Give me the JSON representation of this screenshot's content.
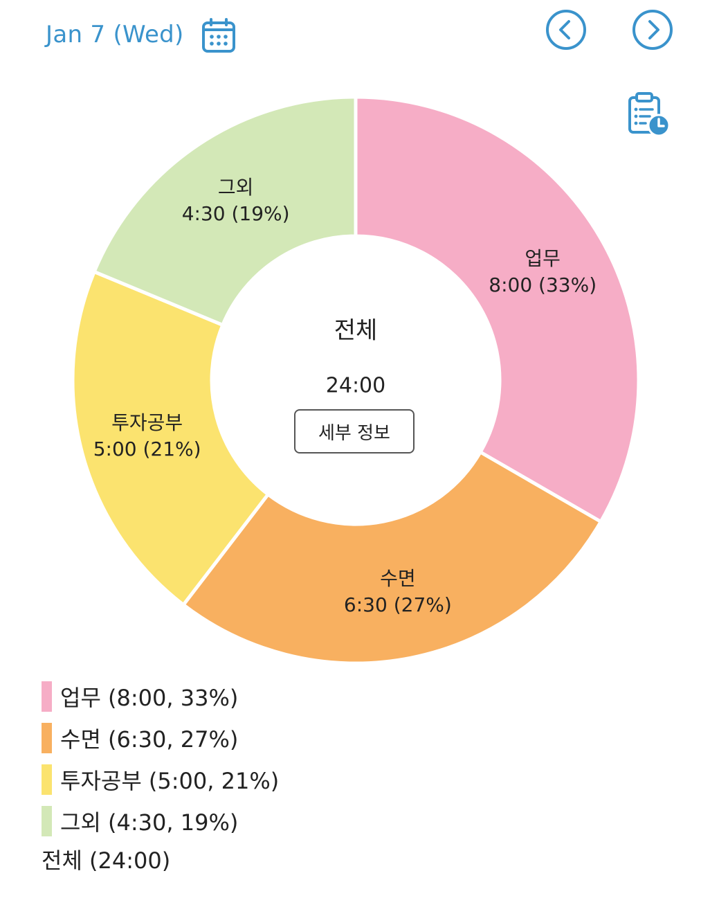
{
  "header": {
    "date_label": "Jan 7 (Wed)",
    "calendar_icon": "calendar-icon",
    "prev_icon": "chevron-left-circle-icon",
    "next_icon": "chevron-right-circle-icon",
    "report_icon": "clipboard-clock-icon",
    "accent_color": "#3a93cc"
  },
  "center": {
    "title": "전체",
    "total": "24:00",
    "detail_button": "세부 정보"
  },
  "chart_data": {
    "type": "pie",
    "donut": true,
    "start_angle_deg": 0,
    "direction": "clockwise",
    "slices": [
      {
        "label": "업무",
        "time": "8:00",
        "percent": "33%",
        "hours": 8.0,
        "color": "#f6adc6"
      },
      {
        "label": "수면",
        "time": "6:30",
        "percent": "27%",
        "hours": 6.5,
        "color": "#f8b060"
      },
      {
        "label": "투자공부",
        "time": "5:00",
        "percent": "21%",
        "hours": 5.0,
        "color": "#fbe36f"
      },
      {
        "label": "그외",
        "time": "4:30",
        "percent": "19%",
        "hours": 4.5,
        "color": "#d3e8b7"
      }
    ],
    "total": "24:00"
  },
  "slice_labels": [
    {
      "name": "업무",
      "value": "8:00 (33%)"
    },
    {
      "name": "수면",
      "value": "6:30 (27%)"
    },
    {
      "name": "투자공부",
      "value": "5:00 (21%)"
    },
    {
      "name": "그외",
      "value": "4:30 (19%)"
    }
  ],
  "legend": {
    "items": [
      {
        "text": "업무 (8:00, 33%)",
        "color": "#f6adc6"
      },
      {
        "text": "수면 (6:30, 27%)",
        "color": "#f8b060"
      },
      {
        "text": "투자공부 (5:00, 21%)",
        "color": "#fbe36f"
      },
      {
        "text": "그외 (4:30, 19%)",
        "color": "#d3e8b7"
      }
    ],
    "total": "전체 (24:00)"
  }
}
